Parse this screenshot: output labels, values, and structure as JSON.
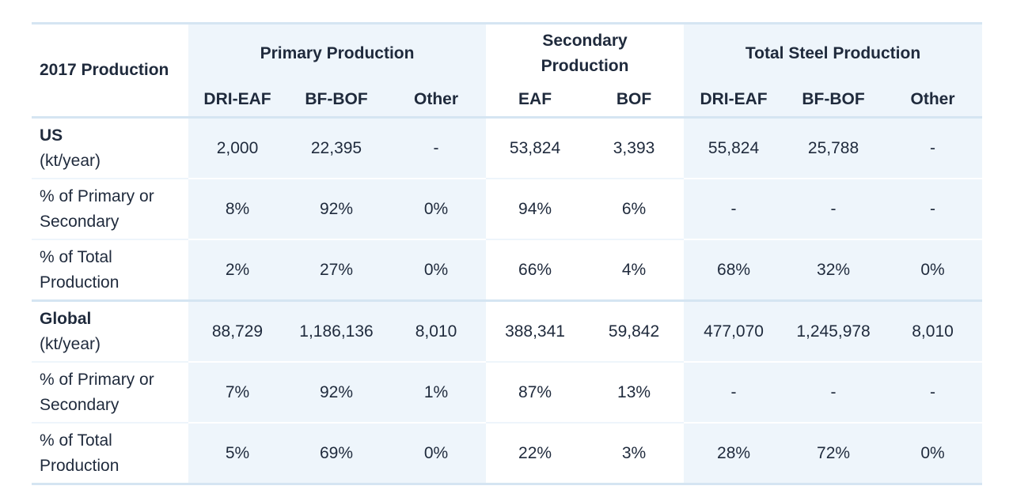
{
  "table": {
    "corner_label": "2017 Production",
    "groups": [
      {
        "label": "Primary Production"
      },
      {
        "label": "Secondary Production"
      },
      {
        "label": "Total Steel Production"
      }
    ],
    "subheaders": [
      "DRI-EAF",
      "BF-BOF",
      "Other",
      "EAF",
      "BOF",
      "DRI-EAF",
      "BF-BOF",
      "Other"
    ],
    "rows": [
      {
        "label": "US",
        "unit": "(kt/year)",
        "bold": true,
        "cells": [
          "2,000",
          "22,395",
          "-",
          "53,824",
          "3,393",
          "55,824",
          "25,788",
          "-"
        ]
      },
      {
        "label": "% of Primary or Secondary",
        "unit": "",
        "bold": false,
        "cells": [
          "8%",
          "92%",
          "0%",
          "94%",
          "6%",
          "-",
          "-",
          "-"
        ]
      },
      {
        "label": "% of Total Production",
        "unit": "",
        "bold": false,
        "cells": [
          "2%",
          "27%",
          "0%",
          "66%",
          "4%",
          "68%",
          "32%",
          "0%"
        ]
      },
      {
        "label": "Global",
        "unit": "(kt/year)",
        "bold": true,
        "cells": [
          "88,729",
          "1,186,136",
          "8,010",
          "388,341",
          "59,842",
          "477,070",
          "1,245,978",
          "8,010"
        ]
      },
      {
        "label": "% of Primary or Secondary",
        "unit": "",
        "bold": false,
        "cells": [
          "7%",
          "92%",
          "1%",
          "87%",
          "13%",
          "-",
          "-",
          "-"
        ]
      },
      {
        "label": "% of Total Production",
        "unit": "",
        "bold": false,
        "cells": [
          "5%",
          "69%",
          "0%",
          "22%",
          "3%",
          "28%",
          "72%",
          "0%"
        ]
      }
    ]
  },
  "colors": {
    "tint": "#eef5fb",
    "border": "#d5e5f2",
    "text": "#1f2a3c"
  }
}
